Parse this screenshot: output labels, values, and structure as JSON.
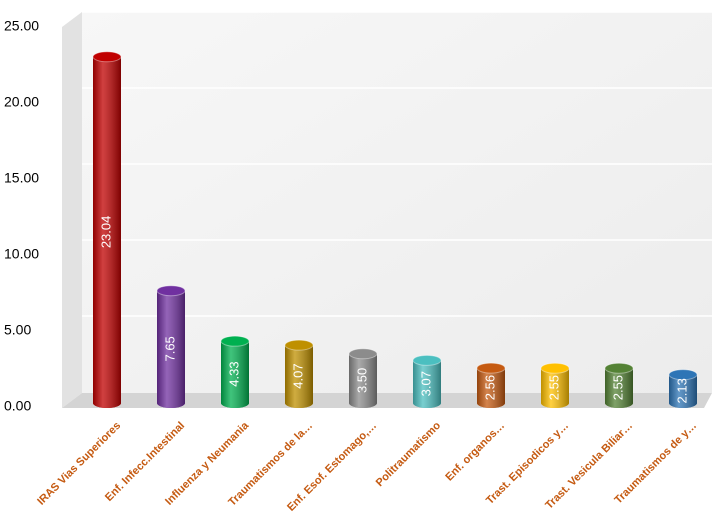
{
  "chart_data": {
    "type": "bar",
    "categories": [
      "IRAS Vias Superiores",
      "Enf. Infecc.Intestinal",
      "Influenza y Neumania",
      "Traumatismos de la…",
      "Enf. Esof. Estomago,…",
      "Politraumatismo",
      "Enf. organos…",
      "Trast. Episodicos y…",
      "Trast. Vesicula Biliar…",
      "Traumatismos de y…"
    ],
    "values": [
      23.04,
      7.65,
      4.33,
      4.07,
      3.5,
      3.07,
      2.56,
      2.55,
      2.55,
      2.13
    ],
    "value_labels": [
      "23.04",
      "7.65",
      "4.33",
      "4.07",
      "3.50",
      "3.07",
      "2.56",
      "2.55",
      "2.55",
      "2.13"
    ],
    "colors": [
      "#c00000",
      "#7030a0",
      "#00b050",
      "#bf9000",
      "#8c8c8c",
      "#4bbfc0",
      "#c55a11",
      "#ffc000",
      "#548235",
      "#2e75b6"
    ],
    "ylim": [
      0,
      25
    ],
    "yticks": [
      {
        "value": 0,
        "label": "0.00"
      },
      {
        "value": 5,
        "label": "5.00"
      },
      {
        "value": 10,
        "label": "10.00"
      },
      {
        "value": 15,
        "label": "15.00"
      },
      {
        "value": 20,
        "label": "20.00"
      },
      {
        "value": 25,
        "label": "25.00"
      }
    ],
    "grid": true
  }
}
